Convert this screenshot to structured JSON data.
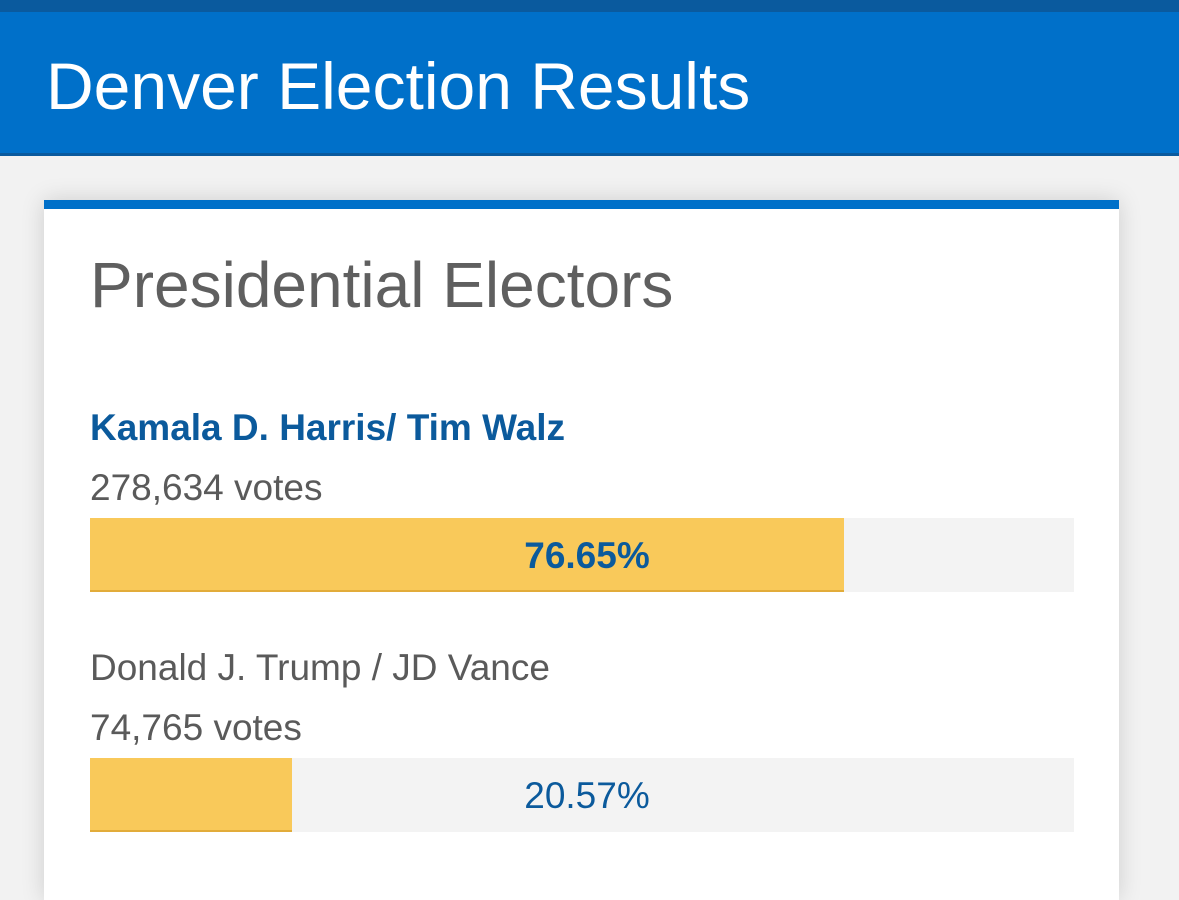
{
  "header": {
    "title": "Denver Election Results",
    "accent_color": "#0070c9"
  },
  "contest": {
    "title": "Presidential Electors",
    "candidates": [
      {
        "name": "Kamala D. Harris/ Tim Walz",
        "votes": "278,634 votes",
        "percent_label": "76.65%",
        "percent": 76.65,
        "winner": true
      },
      {
        "name": "Donald J. Trump / JD Vance",
        "votes": "74,765 votes",
        "percent_label": "20.57%",
        "percent": 20.57,
        "winner": false
      }
    ],
    "bar_fill_color": "#f9c95a",
    "bar_track_color": "#f3f3f3"
  }
}
